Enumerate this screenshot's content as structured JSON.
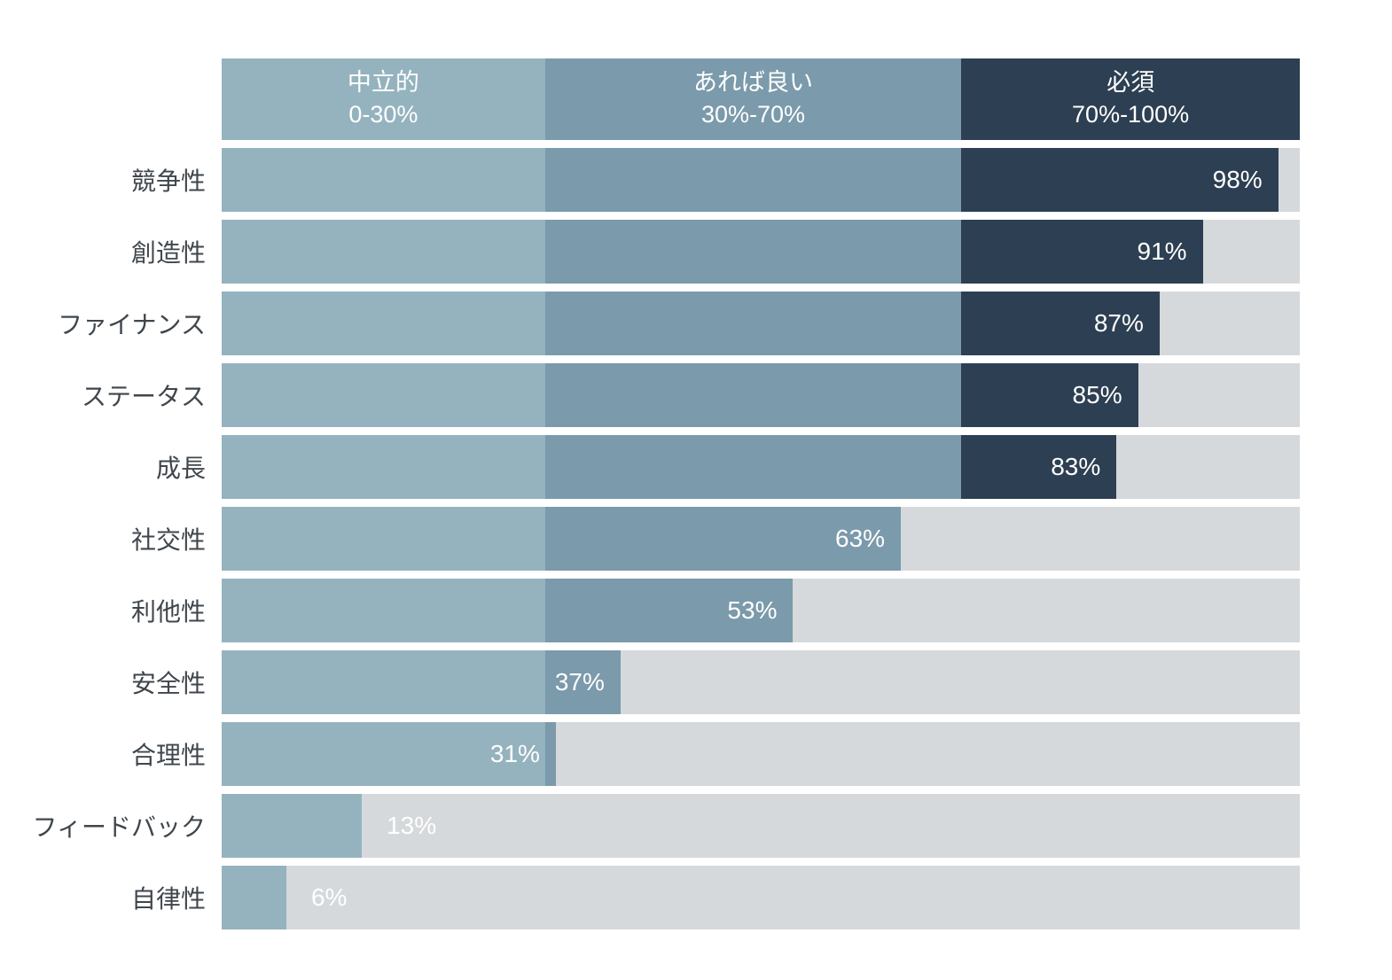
{
  "chart_data": {
    "type": "bar",
    "orientation": "horizontal",
    "title": "",
    "categories": [
      "競争性",
      "創造性",
      "ファイナンス",
      "ステータス",
      "成長",
      "社交性",
      "利他性",
      "安全性",
      "合理性",
      "フィードバック",
      "自律性"
    ],
    "values": [
      98,
      91,
      87,
      85,
      83,
      63,
      53,
      37,
      31,
      13,
      6
    ],
    "unit": "%",
    "xlim": [
      0,
      100
    ],
    "zones": [
      {
        "label": "中立的",
        "range": "0-30%",
        "min": 0,
        "max": 30,
        "color": "#94b3be"
      },
      {
        "label": "あれば良い",
        "range": "30%-70%",
        "min": 30,
        "max": 70,
        "color": "#7b9aab"
      },
      {
        "label": "必須",
        "range": "70%-100%",
        "min": 70,
        "max": 100,
        "color": "#2d3f52"
      }
    ],
    "colors": {
      "track": "#d5d9dc",
      "background": "#ffffff",
      "category_label": "#3f464c",
      "value_label": "#ffffff"
    },
    "layout": {
      "legend_position": "top",
      "grid": false,
      "boundaries_pct": [
        30,
        68.6
      ],
      "zone_widths_pct": [
        30,
        38.6,
        31.4
      ],
      "value_label_outside_threshold": 20
    }
  }
}
